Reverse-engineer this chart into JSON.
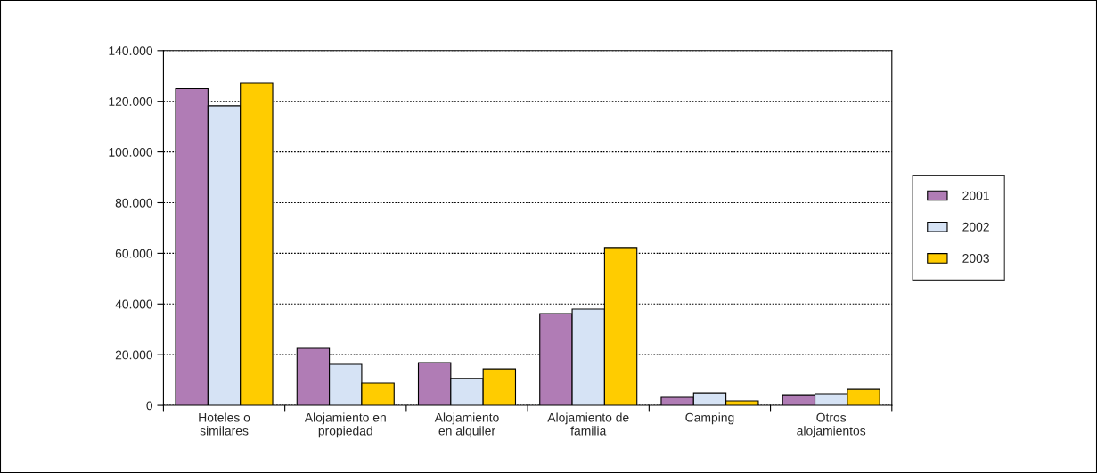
{
  "chart_data": {
    "type": "bar",
    "categories": [
      "Hoteles o\nsimilares",
      "Alojamiento en\npropiedad",
      "Alojamiento\nen alquiler",
      "Alojamiento de\nfamilia",
      "Camping",
      "Otros\nalojamientos"
    ],
    "series": [
      {
        "name": "2001",
        "color": "#b07cb5",
        "values": [
          125000,
          22500,
          16900,
          36200,
          3200,
          4200
        ]
      },
      {
        "name": "2002",
        "color": "#d6e3f5",
        "values": [
          118200,
          16200,
          10600,
          38000,
          4900,
          4600
        ]
      },
      {
        "name": "2003",
        "color": "#ffcc00",
        "values": [
          127300,
          8800,
          14400,
          62300,
          1800,
          6300
        ]
      }
    ],
    "ylim": [
      0,
      140000
    ],
    "yticks": [
      {
        "value": 0,
        "label": "0"
      },
      {
        "value": 20000,
        "label": "20.000"
      },
      {
        "value": 40000,
        "label": "40.000"
      },
      {
        "value": 60000,
        "label": "60.000"
      },
      {
        "value": 80000,
        "label": "80.000"
      },
      {
        "value": 100000,
        "label": "100.000"
      },
      {
        "value": 120000,
        "label": "120.000"
      },
      {
        "value": 140000,
        "label": "140.000"
      }
    ],
    "grid": "y",
    "legend": "right"
  }
}
